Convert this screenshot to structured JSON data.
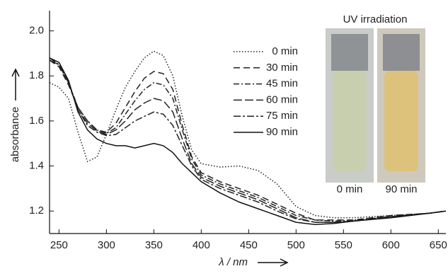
{
  "chart_data": {
    "type": "line",
    "y_label": "absorbance",
    "x_label": "λ / nm",
    "annotations": [
      "UV irradiation",
      "0 min",
      "90 min"
    ],
    "x": [
      240,
      250,
      260,
      270,
      280,
      290,
      300,
      310,
      320,
      330,
      340,
      350,
      360,
      370,
      380,
      390,
      400,
      420,
      440,
      460,
      480,
      500,
      520,
      540,
      560,
      600,
      640,
      658
    ],
    "series": [
      {
        "name": "0 min",
        "color": "#222",
        "dash": "1.5,2.5",
        "values": [
          1.77,
          1.75,
          1.7,
          1.55,
          1.42,
          1.44,
          1.54,
          1.65,
          1.75,
          1.82,
          1.88,
          1.91,
          1.89,
          1.8,
          1.62,
          1.47,
          1.41,
          1.395,
          1.4,
          1.38,
          1.32,
          1.22,
          1.18,
          1.17,
          1.17,
          1.18,
          1.19,
          1.2
        ]
      },
      {
        "name": "30 min",
        "color": "#222",
        "dash": "9,5",
        "values": [
          1.87,
          1.84,
          1.76,
          1.66,
          1.6,
          1.56,
          1.55,
          1.59,
          1.66,
          1.73,
          1.79,
          1.82,
          1.81,
          1.74,
          1.58,
          1.44,
          1.37,
          1.33,
          1.3,
          1.27,
          1.23,
          1.19,
          1.16,
          1.16,
          1.16,
          1.18,
          1.19,
          1.2
        ]
      },
      {
        "name": "45 min",
        "color": "#222",
        "dash": "8,3,2,3",
        "values": [
          1.87,
          1.85,
          1.77,
          1.66,
          1.6,
          1.56,
          1.545,
          1.57,
          1.63,
          1.69,
          1.74,
          1.77,
          1.76,
          1.7,
          1.56,
          1.43,
          1.36,
          1.32,
          1.29,
          1.26,
          1.22,
          1.18,
          1.16,
          1.155,
          1.16,
          1.175,
          1.19,
          1.2
        ]
      },
      {
        "name": "60 min",
        "color": "#222",
        "dash": "12,4",
        "values": [
          1.87,
          1.85,
          1.77,
          1.65,
          1.59,
          1.555,
          1.54,
          1.56,
          1.6,
          1.65,
          1.68,
          1.7,
          1.69,
          1.64,
          1.52,
          1.41,
          1.35,
          1.31,
          1.28,
          1.25,
          1.21,
          1.17,
          1.15,
          1.15,
          1.155,
          1.175,
          1.19,
          1.2
        ]
      },
      {
        "name": "75 min",
        "color": "#222",
        "dash": "10,3,3,3",
        "values": [
          1.88,
          1.85,
          1.77,
          1.65,
          1.58,
          1.55,
          1.535,
          1.54,
          1.57,
          1.6,
          1.62,
          1.64,
          1.63,
          1.58,
          1.49,
          1.4,
          1.34,
          1.3,
          1.27,
          1.24,
          1.2,
          1.165,
          1.15,
          1.15,
          1.155,
          1.175,
          1.19,
          1.2
        ]
      },
      {
        "name": "90 min",
        "color": "#111",
        "dash": "none",
        "values": [
          1.88,
          1.86,
          1.78,
          1.64,
          1.56,
          1.52,
          1.5,
          1.49,
          1.49,
          1.48,
          1.49,
          1.5,
          1.49,
          1.46,
          1.41,
          1.37,
          1.33,
          1.28,
          1.24,
          1.21,
          1.18,
          1.15,
          1.14,
          1.145,
          1.155,
          1.17,
          1.19,
          1.2
        ]
      }
    ],
    "xlim": [
      240,
      658
    ],
    "ylim": [
      1.1,
      2.09
    ],
    "xticks": [
      250,
      300,
      350,
      400,
      450,
      500,
      550,
      600,
      650
    ],
    "yticks": [
      1.2,
      1.4,
      1.6,
      1.8,
      {
        "value": 2,
        "label": "2.0"
      }
    ]
  }
}
